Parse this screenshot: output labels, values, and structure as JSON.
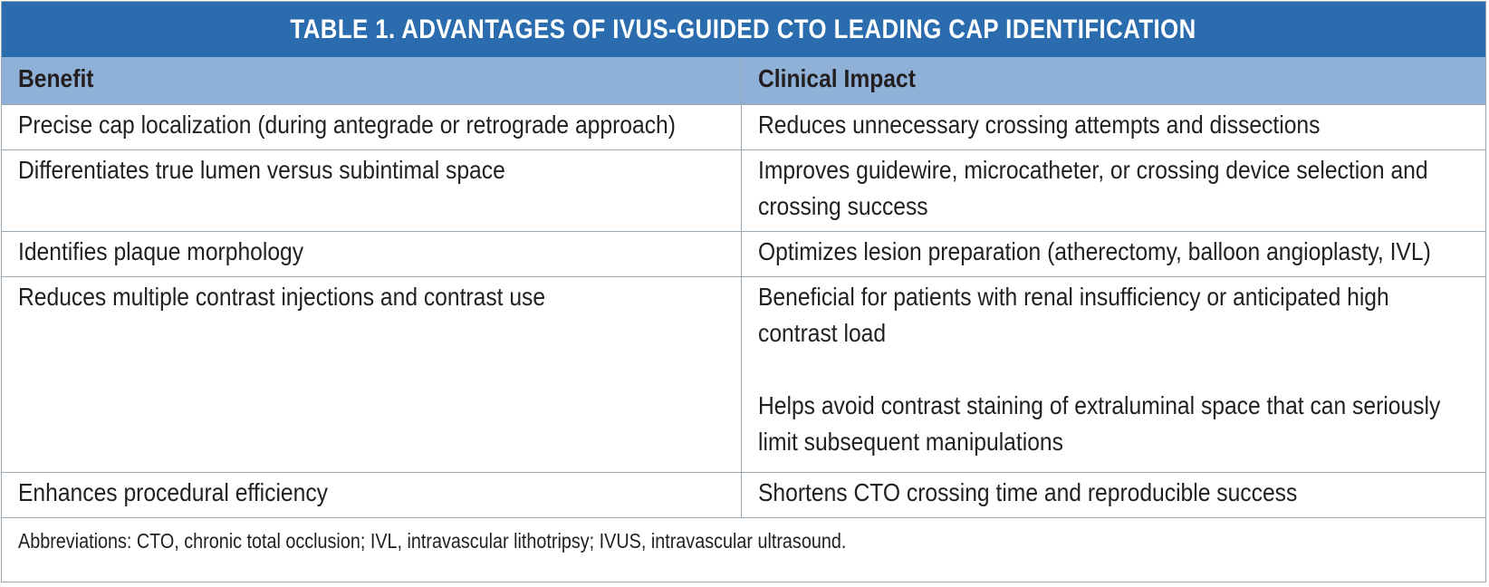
{
  "table": {
    "title": "TABLE 1.  ADVANTAGES OF IVUS-GUIDED CTO LEADING CAP IDENTIFICATION",
    "headers": {
      "benefit": "Benefit",
      "impact": "Clinical Impact"
    },
    "rows": [
      {
        "benefit": "Precise cap localization (during antegrade or retrograde approach)",
        "impact": [
          "Reduces unnecessary crossing attempts and dissections"
        ]
      },
      {
        "benefit": "Differentiates true lumen versus subintimal space",
        "impact": [
          "Improves guidewire, microcatheter, or crossing device selection and crossing success"
        ]
      },
      {
        "benefit": "Identifies plaque morphology",
        "impact": [
          "Optimizes lesion preparation (atherectomy, balloon angioplasty, IVL)"
        ]
      },
      {
        "benefit": "Reduces multiple contrast injections and contrast use",
        "impact": [
          "Beneficial for patients with renal insufficiency or anticipated high contrast load",
          "Helps avoid contrast staining of extraluminal space that can seriously limit subsequent manipulations"
        ]
      },
      {
        "benefit": "Enhances procedural efficiency",
        "impact": [
          "Shortens CTO crossing time and reproducible success"
        ]
      }
    ],
    "footnote": "Abbreviations: CTO, chronic total occlusion; IVL, intravascular lithotripsy; IVUS, intravascular ultrasound."
  },
  "colors": {
    "title_bg": "#2a6cae",
    "header_bg": "#8fb1d8",
    "border": "#9aa7b5"
  }
}
